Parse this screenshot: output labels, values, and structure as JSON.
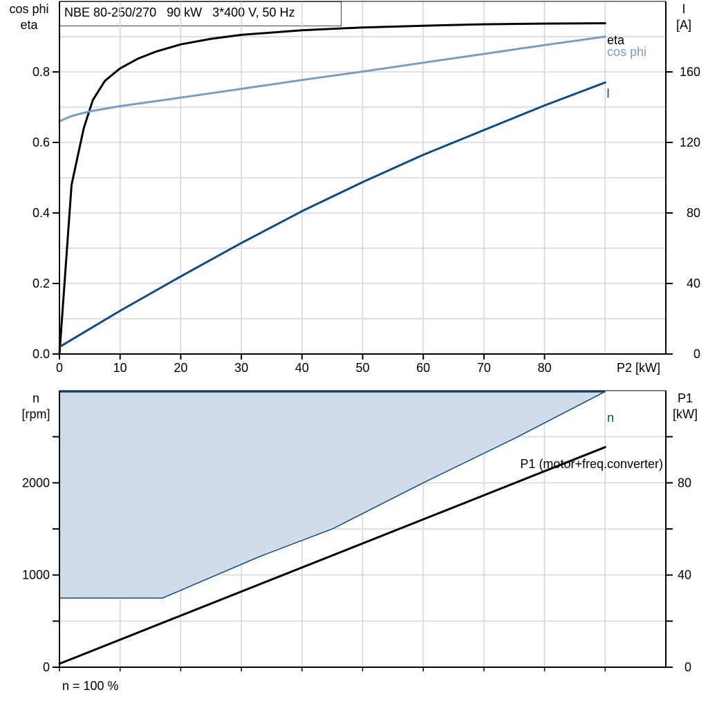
{
  "title": "NBE 80-250/270   90 kW   3*400 V, 50 Hz",
  "footer": "n = 100 %",
  "colors": {
    "eta": "#000000",
    "cos_phi": "#7a9cc0",
    "current": "#0f4a82",
    "speed": "#0f4a82",
    "speed_fill": "#d0dce9",
    "p1": "#000000",
    "grid": "#d6d6d6"
  },
  "chart_data": [
    {
      "type": "line",
      "xlabel": "P2 [kW]",
      "xlim": [
        0,
        100
      ],
      "x_ticks": [
        "0",
        "10",
        "20",
        "30",
        "40",
        "50",
        "60",
        "70",
        "80"
      ],
      "y_left": {
        "label_lines": [
          "cos phi",
          "eta"
        ],
        "ylim": [
          0,
          1.0
        ],
        "ticks": [
          "0.0",
          "0.2",
          "0.4",
          "0.6",
          "0.8"
        ]
      },
      "y_right": {
        "label_lines": [
          "I",
          "[A]"
        ],
        "ylim": [
          0,
          200
        ],
        "ticks": [
          "0",
          "40",
          "80",
          "120",
          "160"
        ]
      },
      "series": [
        {
          "name": "eta",
          "axis": "left",
          "x": [
            0,
            2,
            4,
            5.5,
            7.5,
            10,
            13,
            16,
            20,
            25,
            30,
            40,
            50,
            60,
            70,
            80,
            90
          ],
          "y": [
            0,
            0.48,
            0.64,
            0.72,
            0.775,
            0.81,
            0.838,
            0.858,
            0.878,
            0.894,
            0.905,
            0.918,
            0.926,
            0.931,
            0.935,
            0.937,
            0.938
          ]
        },
        {
          "name": "cos phi",
          "axis": "left",
          "x": [
            0,
            2,
            5,
            10,
            20,
            30,
            40,
            50,
            60,
            70,
            80,
            90
          ],
          "y": [
            0.66,
            0.675,
            0.688,
            0.703,
            0.727,
            0.752,
            0.777,
            0.801,
            0.826,
            0.851,
            0.876,
            0.9
          ]
        },
        {
          "name": "I",
          "axis": "right",
          "x": [
            0,
            10,
            20,
            30,
            40,
            50,
            60,
            70,
            80,
            90
          ],
          "y": [
            4,
            24.5,
            44,
            63,
            81,
            97.5,
            113,
            127,
            141,
            154
          ]
        }
      ]
    },
    {
      "type": "area",
      "xlim": [
        0,
        100
      ],
      "y_left": {
        "label_lines": [
          "n",
          "[rpm]"
        ],
        "ylim": [
          0,
          3000
        ],
        "ticks": [
          "0",
          "1000",
          "2000"
        ]
      },
      "y_right": {
        "label_lines": [
          "P1",
          "[kW]"
        ],
        "ylim": [
          0,
          120
        ],
        "ticks": [
          "0",
          "40",
          "80"
        ]
      },
      "series": [
        {
          "name": "n",
          "axis": "left",
          "x": [
            0,
            90
          ],
          "y": [
            2990,
            2990
          ]
        },
        {
          "name": "",
          "axis": "left",
          "x": [
            0,
            17,
            33,
            45,
            60,
            75,
            90
          ],
          "y": [
            750,
            750,
            1200,
            1500,
            2000,
            2480,
            2990
          ]
        },
        {
          "name": "P1 (motor+freq.converter)",
          "axis": "right",
          "x": [
            0,
            90
          ],
          "y": [
            1.5,
            95.5
          ]
        }
      ]
    }
  ]
}
